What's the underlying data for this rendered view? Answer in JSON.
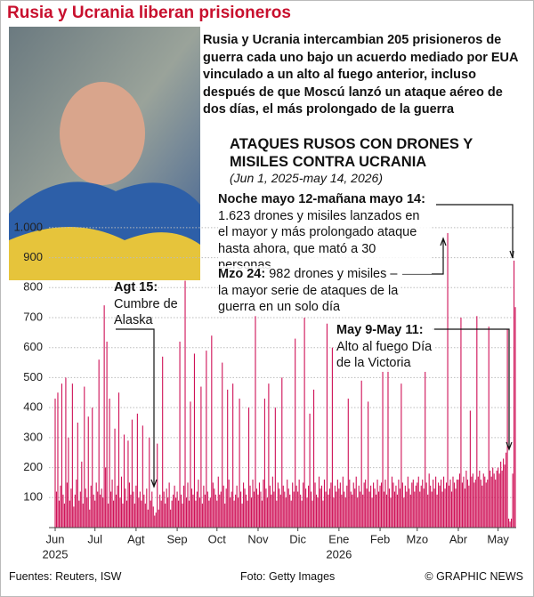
{
  "header": {
    "title": "Rusia y Ucrania liberan prisioneros",
    "intro": "Rusia y Ucrania intercambian 205 prisioneros de guerra cada uno bajo un acuerdo mediado por EUA vinculado a un alto al fuego anterior, incluso después de que Moscú lanzó un ataque aéreo de dos días, el más prolongado de la guerra"
  },
  "chart_data": {
    "type": "bar",
    "title": "ATAQUES RUSOS CON DRONES Y MISILES CONTRA UCRANIA",
    "subtitle": "(Jun 1, 2025-may 14, 2026)",
    "color": "#cf1157",
    "grid": true,
    "ylim": [
      0,
      1050
    ],
    "yticks": [
      100,
      200,
      300,
      400,
      500,
      600,
      700,
      800,
      900,
      {
        "value": 1000,
        "label": "1.000"
      }
    ],
    "year_labels": [
      "2025",
      "2026"
    ],
    "categories": [
      "Jun",
      null,
      null,
      null,
      null,
      null,
      null,
      null,
      null,
      null,
      null,
      null,
      null,
      null,
      null,
      null,
      null,
      null,
      null,
      null,
      null,
      null,
      null,
      null,
      null,
      null,
      null,
      null,
      null,
      null,
      "Jul",
      null,
      null,
      null,
      null,
      null,
      null,
      null,
      null,
      null,
      null,
      null,
      null,
      null,
      null,
      null,
      null,
      null,
      null,
      null,
      null,
      null,
      null,
      null,
      null,
      null,
      null,
      null,
      null,
      null,
      null,
      "Agt",
      null,
      null,
      null,
      null,
      null,
      null,
      null,
      null,
      null,
      null,
      null,
      null,
      null,
      null,
      null,
      null,
      null,
      null,
      null,
      null,
      null,
      null,
      null,
      null,
      null,
      null,
      null,
      null,
      null,
      null,
      "Sep",
      null,
      null,
      null,
      null,
      null,
      null,
      null,
      null,
      null,
      null,
      null,
      null,
      null,
      null,
      null,
      null,
      null,
      null,
      null,
      null,
      null,
      null,
      null,
      null,
      null,
      null,
      null,
      null,
      null,
      "Oct",
      null,
      null,
      null,
      null,
      null,
      null,
      null,
      null,
      null,
      null,
      null,
      null,
      null,
      null,
      null,
      null,
      null,
      null,
      null,
      null,
      null,
      null,
      null,
      null,
      null,
      null,
      null,
      null,
      null,
      null,
      "Nov",
      null,
      null,
      null,
      null,
      null,
      null,
      null,
      null,
      null,
      null,
      null,
      null,
      null,
      null,
      null,
      null,
      null,
      null,
      null,
      null,
      null,
      null,
      null,
      null,
      null,
      null,
      null,
      null,
      null,
      "Dic",
      null,
      null,
      null,
      null,
      null,
      null,
      null,
      null,
      null,
      null,
      null,
      null,
      null,
      null,
      null,
      null,
      null,
      null,
      null,
      null,
      null,
      null,
      null,
      null,
      null,
      null,
      null,
      null,
      null,
      null,
      "Ene",
      null,
      null,
      null,
      null,
      null,
      null,
      null,
      null,
      null,
      null,
      null,
      null,
      null,
      null,
      null,
      null,
      null,
      null,
      null,
      null,
      null,
      null,
      null,
      null,
      null,
      null,
      null,
      null,
      null,
      null,
      "Feb",
      null,
      null,
      null,
      null,
      null,
      null,
      null,
      null,
      null,
      null,
      null,
      null,
      null,
      null,
      null,
      null,
      null,
      null,
      null,
      null,
      null,
      null,
      null,
      null,
      null,
      null,
      null,
      "Mzo",
      null,
      null,
      null,
      null,
      null,
      null,
      null,
      null,
      null,
      null,
      null,
      null,
      null,
      null,
      null,
      null,
      null,
      null,
      null,
      null,
      null,
      null,
      null,
      null,
      null,
      null,
      null,
      null,
      null,
      null,
      "Abr",
      null,
      null,
      null,
      null,
      null,
      null,
      null,
      null,
      null,
      null,
      null,
      null,
      null,
      null,
      null,
      null,
      null,
      null,
      null,
      null,
      null,
      null,
      null,
      null,
      null,
      null,
      null,
      null,
      null,
      "May",
      null,
      null,
      null,
      null,
      null,
      null,
      null,
      null,
      null,
      null,
      null,
      null,
      null
    ],
    "values": [
      430,
      120,
      450,
      90,
      140,
      480,
      110,
      80,
      500,
      150,
      300,
      90,
      130,
      480,
      70,
      110,
      160,
      350,
      90,
      120,
      220,
      80,
      470,
      130,
      100,
      370,
      60,
      140,
      400,
      110,
      90,
      150,
      120,
      560,
      110,
      130,
      100,
      741,
      200,
      620,
      80,
      430,
      120,
      160,
      90,
      330,
      110,
      140,
      450,
      100,
      170,
      80,
      310,
      130,
      90,
      290,
      150,
      110,
      360,
      120,
      80,
      140,
      380,
      100,
      120,
      90,
      340,
      110,
      80,
      130,
      60,
      300,
      90,
      120,
      70,
      40,
      50,
      280,
      60,
      110,
      90,
      570,
      120,
      80,
      130,
      100,
      150,
      60,
      90,
      110,
      140,
      100,
      120,
      90,
      620,
      110,
      80,
      140,
      823,
      100,
      150,
      90,
      420,
      130,
      110,
      580,
      90,
      120,
      160,
      100,
      470,
      80,
      140,
      110,
      590,
      120,
      90,
      100,
      640,
      150,
      130,
      110,
      90,
      170,
      110,
      120,
      550,
      140,
      80,
      130,
      460,
      160,
      100,
      120,
      480,
      90,
      110,
      140,
      100,
      430,
      120,
      80,
      150,
      130,
      110,
      90,
      400,
      140,
      100,
      160,
      120,
      705,
      130,
      110,
      150,
      120,
      90,
      160,
      430,
      130,
      100,
      480,
      140,
      110,
      170,
      120,
      400,
      90,
      150,
      130,
      110,
      500,
      140,
      120,
      100,
      160,
      130,
      110,
      90,
      150,
      120,
      630,
      140,
      120,
      160,
      110,
      90,
      150,
      700,
      130,
      100,
      140,
      380,
      120,
      90,
      460,
      150,
      110,
      100,
      170,
      130,
      140,
      90,
      160,
      120,
      680,
      110,
      130,
      150,
      600,
      100,
      140,
      120,
      160,
      130,
      150,
      110,
      170,
      120,
      100,
      140,
      430,
      160,
      120,
      110,
      150,
      130,
      170,
      100,
      140,
      120,
      490,
      110,
      150,
      160,
      130,
      420,
      120,
      140,
      100,
      150,
      130,
      110,
      160,
      120,
      140,
      150,
      520,
      120,
      160,
      110,
      530,
      130,
      100,
      170,
      150,
      120,
      140,
      110,
      160,
      130,
      480,
      150,
      100,
      140,
      120,
      170,
      130,
      110,
      150,
      160,
      120,
      140,
      150,
      170,
      120,
      140,
      160,
      130,
      520,
      150,
      110,
      180,
      140,
      120,
      160,
      130,
      170,
      110,
      150,
      140,
      160,
      120,
      170,
      130,
      150,
      982,
      140,
      160,
      120,
      170,
      150,
      130,
      160,
      160,
      180,
      700,
      150,
      170,
      130,
      190,
      160,
      140,
      390,
      170,
      180,
      150,
      160,
      705,
      170,
      190,
      160,
      140,
      180,
      170,
      150,
      160,
      670,
      190,
      170,
      200,
      180,
      160,
      190,
      200,
      180,
      220,
      190,
      230,
      210,
      250,
      660,
      30,
      20,
      30,
      180,
      890,
      735
    ],
    "annotations": [
      {
        "label": "Noche mayo 12-mañana mayo 14:",
        "text": "1.623 drones y misiles lanzados en el mayor y más prolongado ataque hasta ahora, que mató a 30 personas"
      },
      {
        "label": "Mzo 24:",
        "text": "982 drones y misiles – la mayor serie de ataques de la guerra en un solo día"
      },
      {
        "label": "Agt 15:",
        "text": "Cumbre de Alaska"
      },
      {
        "label": "May 9-May 11:",
        "text": "Alto al fuego Día de la Victoria"
      }
    ]
  },
  "footer": {
    "sources": "Fuentes: Reuters, ISW",
    "photo": "Foto: Getty Images",
    "credit": "© GRAPHIC NEWS"
  }
}
